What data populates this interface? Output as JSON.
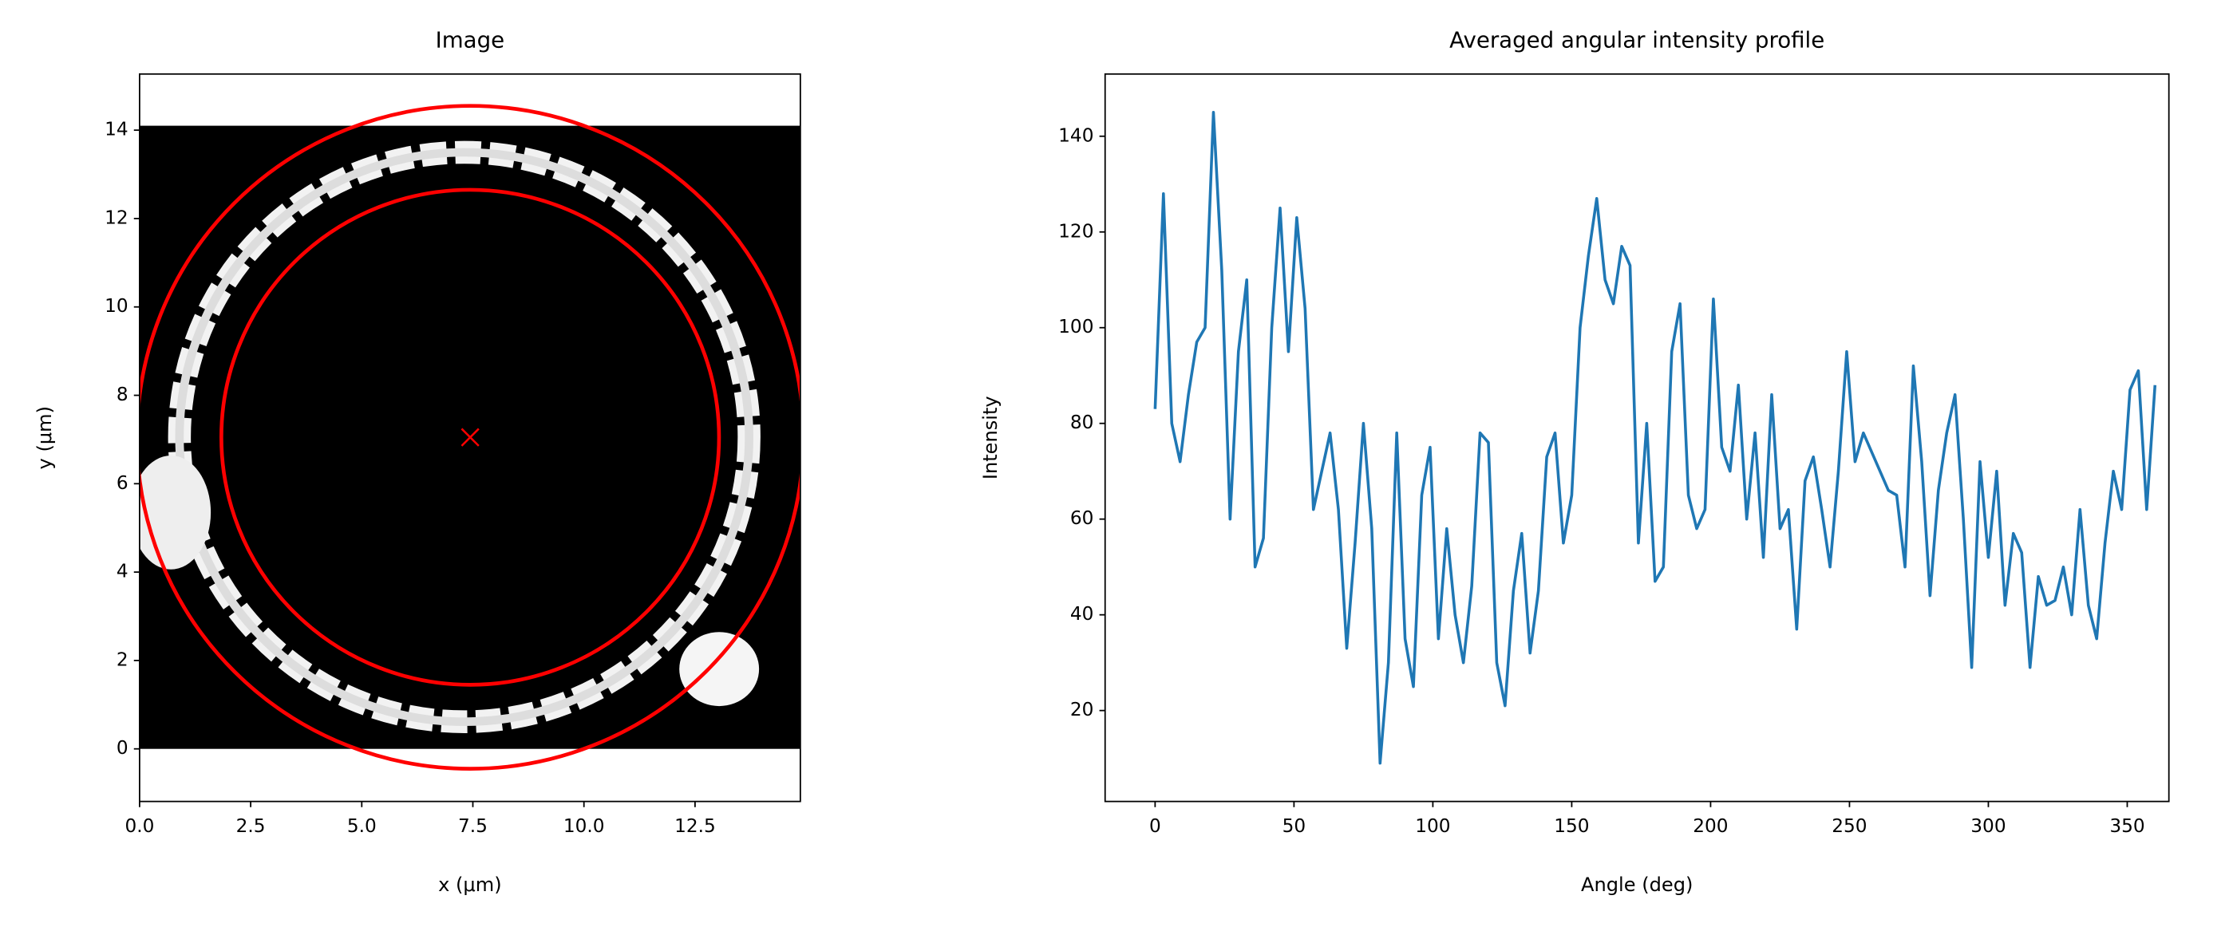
{
  "chart_data": [
    {
      "type": "image",
      "title": "Image",
      "xlabel": "x (μm)",
      "ylabel": "y (μm)",
      "xlim": [
        0,
        14.87
      ],
      "ylim": [
        -1.19,
        15.27
      ],
      "xticks": [
        {
          "value": 0,
          "label": "0.0"
        },
        2.5,
        {
          "value": 5,
          "label": "5.0"
        },
        7.5,
        {
          "value": 10,
          "label": "10.0"
        },
        12.5
      ],
      "yticks": [
        0,
        2,
        4,
        6,
        8,
        10,
        12,
        14
      ],
      "extent": [
        0,
        14.87,
        0,
        14.1
      ],
      "circles": {
        "center_x": 7.44,
        "center_y": 7.05,
        "radii": [
          7.5,
          5.6
        ],
        "color": "#ff0000"
      }
    },
    {
      "type": "line",
      "title": "Averaged angular intensity profile",
      "xlabel": "Angle (deg)",
      "ylabel": "Intensity",
      "xlim": [
        -18,
        365
      ],
      "ylim": [
        1,
        153
      ],
      "xticks": [
        0,
        50,
        100,
        150,
        200,
        250,
        300,
        350
      ],
      "yticks": [
        20,
        40,
        60,
        80,
        100,
        120,
        140
      ],
      "x": [
        0,
        3,
        6,
        9,
        12,
        15,
        18,
        21,
        24,
        27,
        30,
        33,
        36,
        39,
        42,
        45,
        48,
        51,
        54,
        57,
        60,
        63,
        66,
        69,
        72,
        75,
        78,
        81,
        84,
        87,
        90,
        93,
        96,
        99,
        102,
        105,
        108,
        111,
        114,
        117,
        120,
        123,
        126,
        129,
        132,
        135,
        138,
        141,
        144,
        147,
        150,
        153,
        156,
        159,
        162,
        165,
        168,
        171,
        174,
        177,
        180,
        183,
        186,
        189,
        192,
        195,
        198,
        201,
        204,
        207,
        210,
        213,
        216,
        219,
        222,
        225,
        228,
        231,
        234,
        237,
        240,
        243,
        246,
        249,
        252,
        255,
        258,
        261,
        264,
        267,
        270,
        273,
        276,
        279,
        282,
        285,
        288,
        291,
        294,
        297,
        300,
        303,
        306,
        309,
        312,
        315,
        318,
        321,
        324,
        327,
        330,
        333,
        336,
        339,
        342,
        345,
        348,
        351,
        354,
        357,
        360
      ],
      "series": [
        {
          "color": "#1f77b4",
          "values": [
            83,
            128,
            80,
            72,
            86,
            97,
            100,
            145,
            112,
            60,
            95,
            110,
            50,
            56,
            100,
            125,
            95,
            123,
            104,
            62,
            70,
            78,
            62,
            33,
            55,
            80,
            58,
            9,
            30,
            78,
            35,
            25,
            65,
            75,
            35,
            58,
            40,
            30,
            46,
            78,
            76,
            30,
            21,
            45,
            57,
            32,
            45,
            73,
            78,
            55,
            65,
            100,
            115,
            127,
            110,
            105,
            117,
            113,
            55,
            80,
            47,
            50,
            95,
            105,
            65,
            58,
            62,
            106,
            75,
            70,
            88,
            60,
            78,
            52,
            86,
            58,
            62,
            37,
            68,
            73,
            62,
            50,
            70,
            95,
            72,
            78,
            74,
            70,
            66,
            65,
            50,
            92,
            72,
            44,
            66,
            78,
            86,
            60,
            29,
            72,
            52,
            70,
            42,
            57,
            53,
            29,
            48,
            42,
            43,
            50,
            40,
            62,
            42,
            35,
            55,
            70,
            62,
            87,
            91,
            62,
            88
          ]
        }
      ]
    }
  ]
}
